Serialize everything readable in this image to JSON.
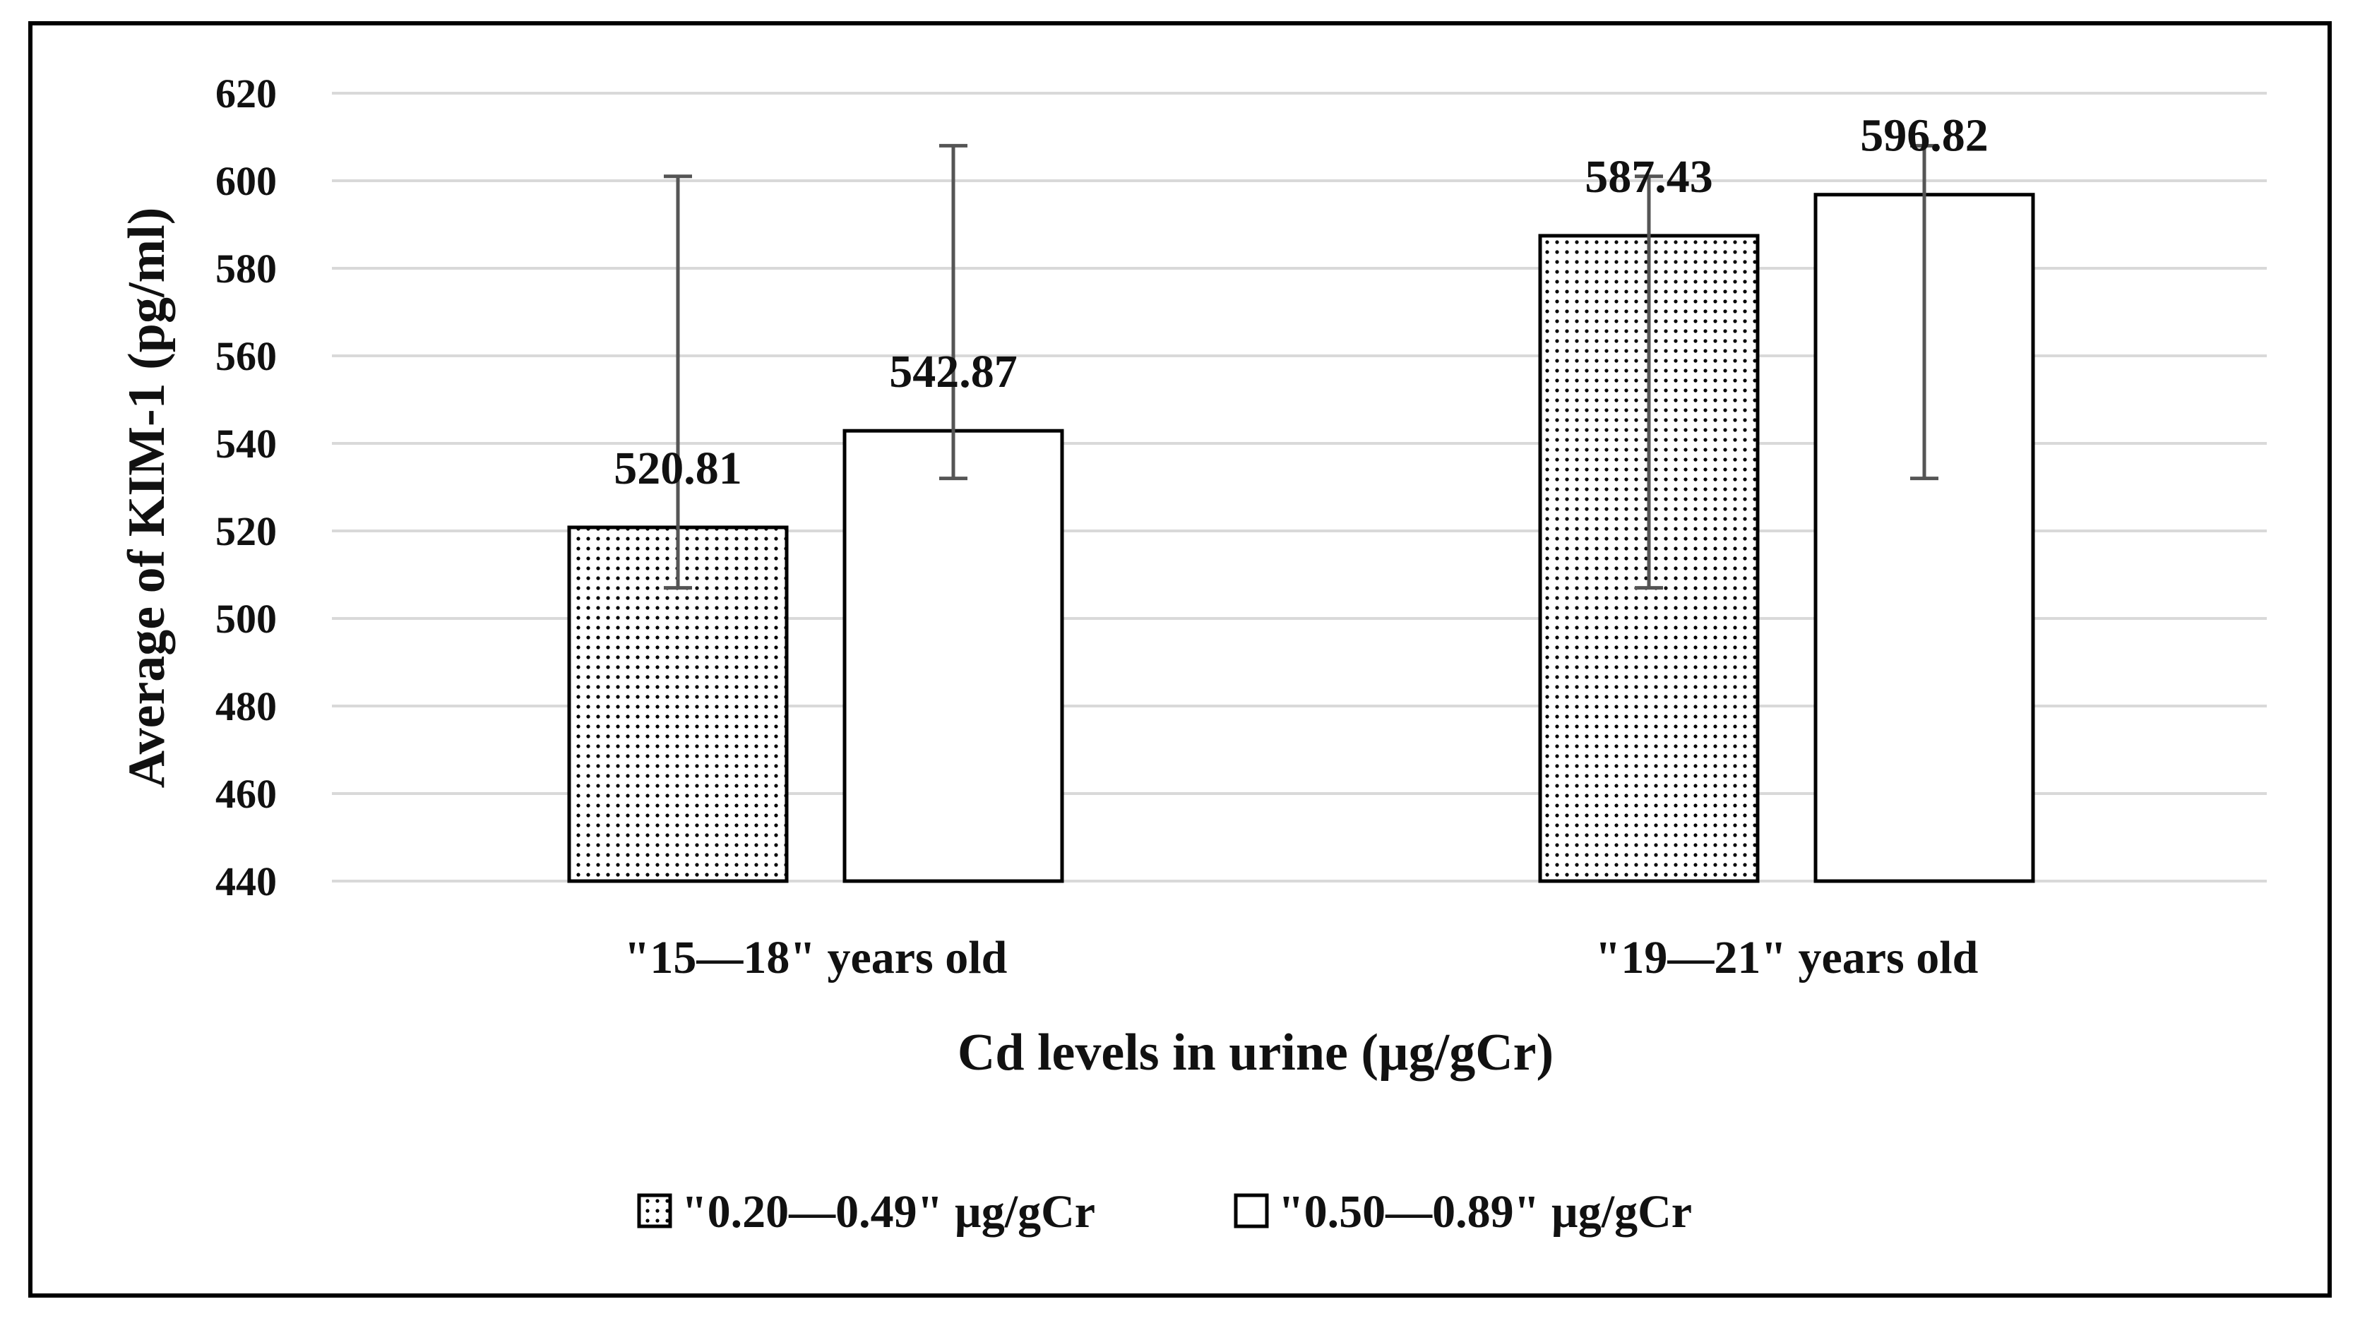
{
  "chart_data": {
    "type": "bar",
    "categories": [
      "\"15—18\" years old",
      "\"19—21\" years old"
    ],
    "series": [
      {
        "name": "\"0.20—0.49\" µg/gCr",
        "values": [
          520.81,
          587.43
        ],
        "err_low": [
          507,
          507
        ],
        "err_high": [
          601,
          601
        ],
        "pattern": "dotted"
      },
      {
        "name": "\"0.50—0.89\" µg/gCr",
        "values": [
          542.87,
          596.82
        ],
        "err_low": [
          532,
          532
        ],
        "err_high": [
          608,
          608
        ],
        "pattern": "plain"
      }
    ],
    "data_labels": [
      [
        "520.81",
        "587.43"
      ],
      [
        "542.87",
        "596.82"
      ]
    ],
    "xlabel": "Cd levels in urine (µg/gCr)",
    "ylabel": "Average of KIM-1 (pg/ml)",
    "ylim": [
      440,
      620
    ],
    "yticks": [
      440,
      460,
      480,
      500,
      520,
      540,
      560,
      580,
      600,
      620
    ],
    "grid": true,
    "legend_position": "bottom",
    "colors": {
      "bar_fill": "#ffffff",
      "bar_stroke": "#000000",
      "grid": "#d9d9d9",
      "error_bar": "#555555"
    }
  }
}
